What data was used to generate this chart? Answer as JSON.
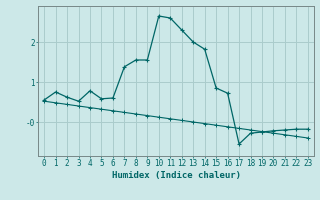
{
  "xlabel": "Humidex (Indice chaleur)",
  "background_color": "#cce8e8",
  "grid_color": "#aacccc",
  "line_color": "#006666",
  "x_values": [
    0,
    1,
    2,
    3,
    4,
    5,
    6,
    7,
    8,
    9,
    10,
    11,
    12,
    13,
    14,
    15,
    16,
    17,
    18,
    19,
    20,
    21,
    22,
    23
  ],
  "y_main": [
    0.55,
    0.75,
    0.62,
    0.52,
    0.78,
    0.58,
    0.6,
    1.38,
    1.55,
    1.55,
    2.65,
    2.6,
    2.3,
    2.0,
    1.82,
    0.85,
    0.72,
    -0.55,
    -0.28,
    -0.25,
    -0.22,
    -0.2,
    -0.18,
    -0.18
  ],
  "y_trend": [
    0.52,
    0.48,
    0.44,
    0.4,
    0.36,
    0.32,
    0.28,
    0.24,
    0.2,
    0.16,
    0.12,
    0.08,
    0.04,
    0.0,
    -0.04,
    -0.08,
    -0.12,
    -0.16,
    -0.2,
    -0.24,
    -0.28,
    -0.32,
    -0.36,
    -0.4
  ],
  "xlim": [
    -0.5,
    23.5
  ],
  "ylim": [
    -0.85,
    2.9
  ],
  "label_fontsize": 6.5,
  "tick_fontsize": 5.5
}
